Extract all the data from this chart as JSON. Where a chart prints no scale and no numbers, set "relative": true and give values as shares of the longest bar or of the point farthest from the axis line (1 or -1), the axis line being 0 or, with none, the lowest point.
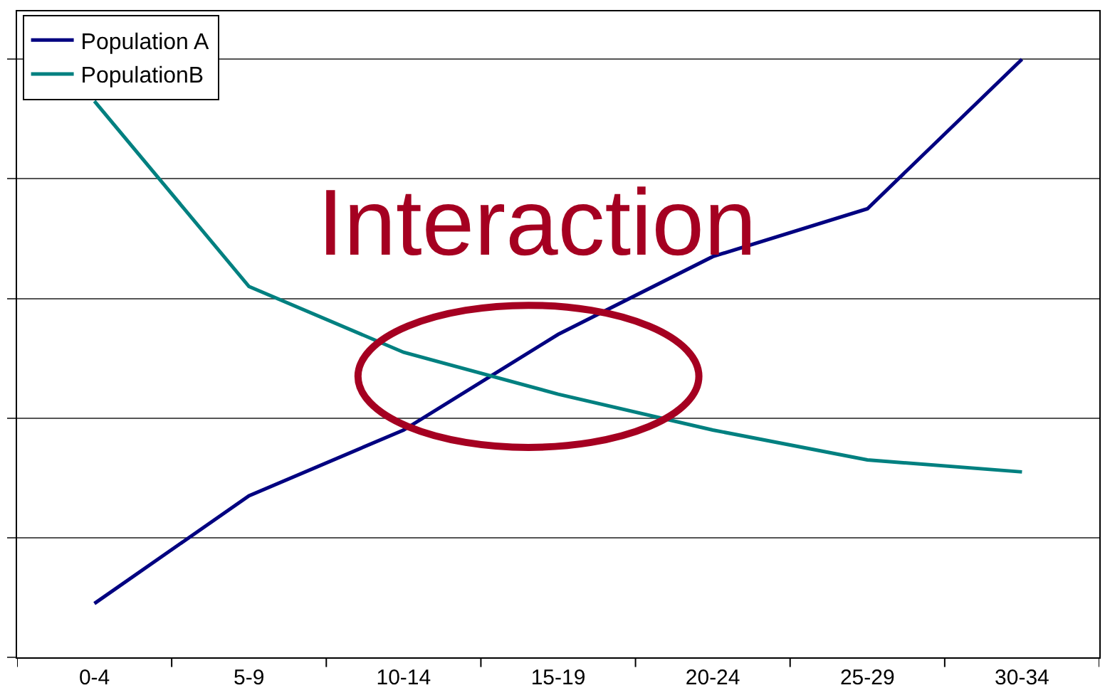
{
  "chart_data": {
    "type": "line",
    "relative": true,
    "categories": [
      "0-4",
      "5-9",
      "10-14",
      "15-19",
      "20-24",
      "25-29",
      "30-34"
    ],
    "series": [
      {
        "name": "Population A",
        "color": "#000080",
        "values": [
          0.09,
          0.27,
          0.38,
          0.54,
          0.67,
          0.75,
          1.0
        ]
      },
      {
        "name": "PopulationB",
        "color": "#008080",
        "values": [
          0.93,
          0.62,
          0.51,
          0.44,
          0.38,
          0.33,
          0.31
        ]
      }
    ],
    "annotations": [
      "Interaction"
    ],
    "grid": "y",
    "legend": "top left",
    "marker": "none",
    "line_style": "solid"
  }
}
